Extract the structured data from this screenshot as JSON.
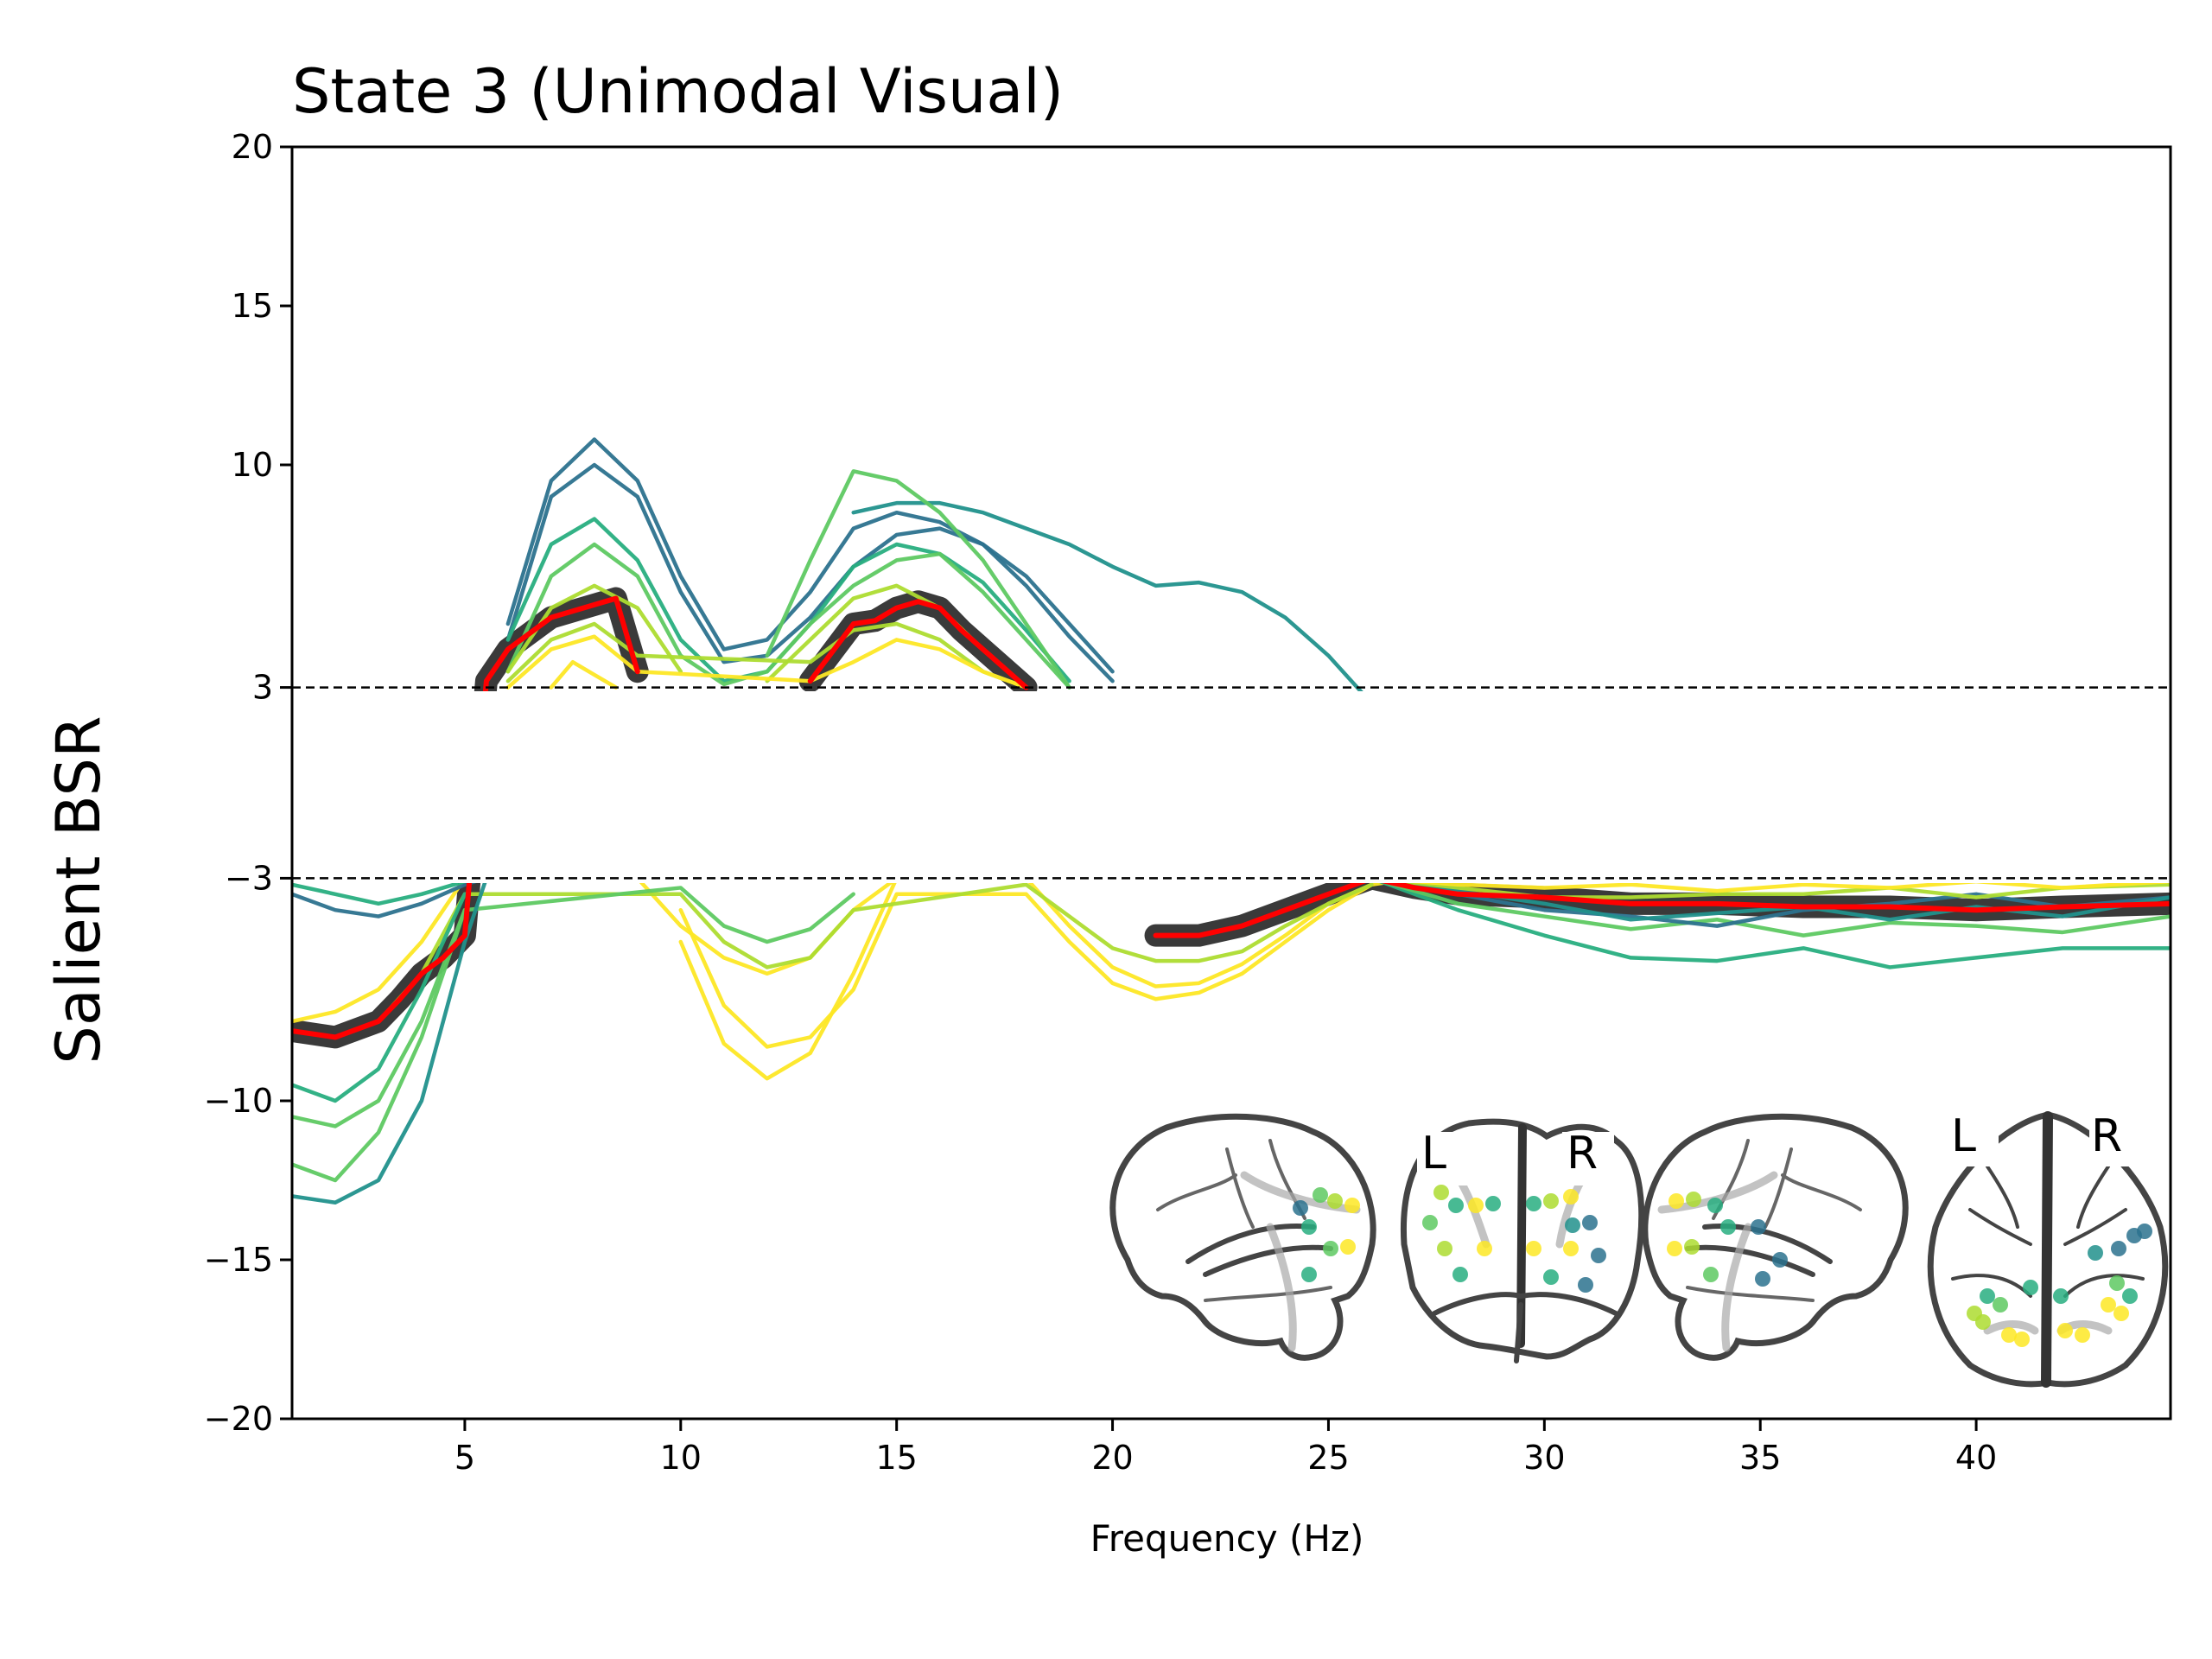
{
  "chart_data": {
    "type": "line",
    "title": "State 3 (Unimodal Visual)",
    "xlabel": "Frequency (Hz)",
    "ylabel": "Salient BSR",
    "xlim": [
      1,
      44.5
    ],
    "ylim": [
      -20,
      20
    ],
    "xticks": [
      5,
      10,
      15,
      20,
      25,
      30,
      35,
      40
    ],
    "yticks": [
      20,
      15,
      10,
      3,
      -3,
      -10,
      -15,
      -20
    ],
    "ytick_labels": [
      "20",
      "15",
      "10",
      "3",
      "−3",
      "−10",
      "−15",
      "−20"
    ],
    "threshold_lines": [
      3,
      -3
    ],
    "grid": false,
    "colors": {
      "mean": "#ff0000",
      "band": "#3a3a3a",
      "threshold": "#000000",
      "channels": [
        "#2c728e",
        "#21918c",
        "#28ae80",
        "#5ec962",
        "#addc30",
        "#fde725"
      ]
    },
    "series": [
      {
        "role": "channel",
        "color": "#2c728e",
        "x": [
          4,
          5,
          6,
          7,
          8,
          9,
          10,
          11,
          12,
          13,
          14,
          15,
          16,
          17,
          18,
          19,
          20,
          21,
          22,
          23,
          24,
          25,
          26
        ],
        "y": [
          null,
          null,
          4.5,
          9,
          10,
          9,
          6,
          3.8,
          4,
          5.2,
          6.8,
          7.8,
          8,
          7.5,
          6.5,
          5,
          3.5,
          null,
          null,
          null,
          null,
          null,
          null
        ]
      },
      {
        "role": "channel",
        "color": "#2c728e",
        "x": [
          5,
          6,
          7,
          8,
          9,
          10,
          11,
          12,
          13,
          14,
          15,
          16,
          17,
          18,
          19,
          20,
          21
        ],
        "y": [
          null,
          5,
          9.5,
          10.8,
          9.5,
          6.5,
          4.2,
          4.5,
          6,
          8,
          8.5,
          8.2,
          7.5,
          6.2,
          4.6,
          3.2,
          null
        ]
      },
      {
        "role": "channel",
        "color": "#21918c",
        "x": [
          14,
          15,
          16,
          17,
          18,
          19,
          20,
          21,
          22,
          23,
          24,
          25,
          26
        ],
        "y": [
          8.5,
          8.8,
          8.8,
          8.5,
          8,
          7.5,
          6.8,
          6.2,
          6.3,
          6,
          5.2,
          4,
          2.5
        ]
      },
      {
        "role": "channel",
        "color": "#28ae80",
        "x": [
          5,
          6,
          7,
          8,
          9,
          10,
          11,
          12,
          13,
          14,
          15,
          16,
          17,
          18,
          19
        ],
        "y": [
          null,
          4.5,
          7.5,
          8.3,
          7,
          4.5,
          3.2,
          3.5,
          5,
          6.8,
          7.5,
          7.2,
          6.3,
          4.8,
          3.2
        ]
      },
      {
        "role": "channel",
        "color": "#5ec962",
        "x": [
          12,
          13,
          14,
          15,
          16,
          17,
          18,
          19
        ],
        "y": [
          4,
          7,
          9.8,
          9.5,
          8.5,
          7,
          5,
          3
        ]
      },
      {
        "role": "channel",
        "color": "#5ec962",
        "x": [
          5,
          6,
          7,
          8,
          9,
          10,
          11,
          12,
          13,
          14,
          15,
          16,
          17,
          18,
          19
        ],
        "y": [
          null,
          3.5,
          6.5,
          7.5,
          6.5,
          4,
          3.1,
          3.5,
          5,
          6.2,
          7,
          7.2,
          6,
          4.5,
          3
        ]
      },
      {
        "role": "channel",
        "color": "#addc30",
        "x": [
          6,
          7,
          8,
          9,
          10,
          11,
          12,
          13,
          14,
          15,
          16,
          17,
          18
        ],
        "y": [
          3.5,
          5.5,
          6.2,
          5.5,
          3.5,
          null,
          3.2,
          4.5,
          5.8,
          6.2,
          5.5,
          4.2,
          3
        ]
      },
      {
        "role": "channel",
        "color": "#addc30",
        "x": [
          6,
          7,
          8,
          9,
          13,
          14,
          15,
          16,
          17,
          18
        ],
        "y": [
          3.2,
          4.5,
          5,
          4,
          3.8,
          4.8,
          5,
          4.5,
          3.5,
          3
        ]
      },
      {
        "role": "channel",
        "color": "#fde725",
        "x": [
          6,
          7,
          8,
          9,
          13,
          14,
          15,
          16,
          17,
          18
        ],
        "y": [
          3,
          4.2,
          4.6,
          3.5,
          3.2,
          3.8,
          4.5,
          4.2,
          3.5,
          3
        ]
      },
      {
        "role": "channel",
        "color": "#fde725",
        "x": [
          7,
          7.5,
          8,
          8.5
        ],
        "y": [
          3,
          3.8,
          3.4,
          3
        ]
      },
      {
        "role": "channel",
        "color": "#fde725",
        "x": [
          1,
          2,
          3,
          4,
          5,
          6,
          9,
          10,
          11,
          12,
          13,
          14,
          15,
          16,
          17,
          18,
          19,
          20,
          21,
          22,
          23,
          24,
          25,
          26,
          27
        ],
        "y": [
          -7.5,
          -7.2,
          -6.5,
          -5,
          -3,
          null,
          -3,
          -4.5,
          -5.5,
          -6,
          -5.5,
          -4,
          -3,
          null,
          null,
          -3,
          -4.5,
          -5.8,
          -6.4,
          -6.3,
          -5.7,
          -4.8,
          -3.8,
          -3.2,
          -3
        ]
      },
      {
        "role": "channel",
        "color": "#fde725",
        "x": [
          10,
          11,
          12,
          13,
          14,
          15,
          18,
          19,
          20,
          21,
          22,
          23,
          24,
          25,
          26
        ],
        "y": [
          -4,
          -7,
          -8.3,
          -8,
          -6.5,
          -3.5,
          -3.5,
          -5,
          -6.3,
          -6.8,
          -6.6,
          -6,
          -5,
          -4,
          -3.2
        ]
      },
      {
        "role": "channel",
        "color": "#fde725",
        "x": [
          10,
          11,
          12,
          13,
          14,
          15
        ],
        "y": [
          -5,
          -8.2,
          -9.3,
          -8.5,
          -6,
          -3
        ]
      },
      {
        "role": "channel",
        "color": "#addc30",
        "x": [
          1,
          2,
          3,
          4,
          5,
          10,
          11,
          12,
          13,
          14,
          18,
          19,
          20,
          21,
          22,
          23,
          24,
          25,
          26
        ],
        "y": [
          -7.8,
          -8,
          -7.5,
          -6,
          -3.5,
          -3.5,
          -5,
          -5.8,
          -5.5,
          -4,
          -3.2,
          -4.2,
          -5.2,
          -5.6,
          -5.6,
          -5.3,
          -4.5,
          -3.8,
          -3.2
        ]
      },
      {
        "role": "channel",
        "color": "#5ec962",
        "x": [
          1,
          2,
          3,
          4,
          5,
          10,
          11,
          12,
          13,
          14
        ],
        "y": [
          -10.5,
          -10.8,
          -10,
          -7.5,
          -4,
          -3.3,
          -4.5,
          -5,
          -4.6,
          -3.5
        ]
      },
      {
        "role": "channel",
        "color": "#5ec962",
        "x": [
          1,
          2,
          3,
          4,
          5
        ],
        "y": [
          -12,
          -12.5,
          -11,
          -8,
          -4
        ]
      },
      {
        "role": "channel",
        "color": "#28ae80",
        "x": [
          1,
          2,
          3,
          4,
          5
        ],
        "y": [
          -9.5,
          -10,
          -9,
          -6.5,
          -3.5
        ]
      },
      {
        "role": "channel",
        "color": "#21918c",
        "x": [
          1,
          2,
          3,
          4,
          5,
          5.5
        ],
        "y": [
          -13,
          -13.2,
          -12.5,
          -10,
          -5,
          -3
        ]
      },
      {
        "role": "channel",
        "color": "#2c728e",
        "x": [
          1,
          2,
          3,
          4,
          5,
          5.5
        ],
        "y": [
          -3.5,
          -4,
          -4.2,
          -3.8,
          -3.2,
          -3
        ]
      },
      {
        "role": "channel",
        "color": "#28ae80",
        "x": [
          1,
          2,
          3,
          4,
          5
        ],
        "y": [
          -3.2,
          -3.5,
          -3.8,
          -3.5,
          -3.1
        ]
      },
      {
        "role": "channel",
        "color": "#28ae80",
        "x": [
          26,
          28,
          30,
          32,
          34,
          36,
          38,
          40,
          42,
          44.5
        ],
        "y": [
          -3,
          -4,
          -4.8,
          -5.5,
          -5.6,
          -5.2,
          -5.8,
          -5.5,
          -5.2,
          -5.2
        ]
      },
      {
        "role": "channel",
        "color": "#5ec962",
        "x": [
          26,
          28,
          30,
          32,
          34,
          36,
          38,
          40,
          42,
          44.5
        ],
        "y": [
          -3,
          -3.8,
          -4.2,
          -4.6,
          -4.3,
          -4.8,
          -4.4,
          -4.5,
          -4.7,
          -4.2
        ]
      },
      {
        "role": "channel",
        "color": "#2c728e",
        "x": [
          26,
          28,
          30,
          32,
          34,
          36,
          38,
          40,
          42,
          44.5
        ],
        "y": [
          -3,
          -3.5,
          -4,
          -4.2,
          -4.5,
          -4,
          -3.8,
          -3.5,
          -3.9,
          -3.6
        ]
      },
      {
        "role": "channel",
        "color": "#21918c",
        "x": [
          26,
          28,
          30,
          32,
          34,
          36,
          38,
          40,
          42,
          44.5
        ],
        "y": [
          -3,
          -3.4,
          -3.8,
          -4.3,
          -4.1,
          -3.9,
          -4.3,
          -3.9,
          -4.2,
          -3.6
        ]
      },
      {
        "role": "channel",
        "color": "#addc30",
        "x": [
          26,
          28,
          30,
          32,
          34,
          36,
          38,
          40,
          42,
          44.5
        ],
        "y": [
          -3,
          -3.3,
          -3.6,
          -3.6,
          -3.5,
          -3.5,
          -3.3,
          -3.6,
          -3.3,
          -3.2
        ]
      },
      {
        "role": "channel",
        "color": "#fde725",
        "x": [
          26,
          28,
          30,
          32,
          34,
          36,
          38,
          40,
          42,
          44.5
        ],
        "y": [
          -3,
          -3.2,
          -3.3,
          -3.2,
          -3.4,
          -3.2,
          -3.3,
          -3.1,
          -3.3,
          -3.1
        ]
      },
      {
        "role": "mean",
        "color": "#ff0000",
        "x": [
          1,
          2,
          3,
          3.5,
          4,
          4.5,
          5,
          5.5,
          6,
          7,
          8,
          8.5,
          9,
          9.5,
          10,
          11,
          11.5,
          12,
          13,
          14,
          14.5,
          15,
          15.5,
          16,
          16.5,
          17,
          18,
          18.5,
          19,
          20,
          21,
          22,
          23,
          24,
          25,
          26,
          27,
          28,
          30,
          32,
          34,
          36,
          38,
          40,
          42,
          44.5
        ],
        "y": [
          -7.8,
          -8,
          -7.5,
          -6.8,
          -6,
          -5.5,
          -4.8,
          3.2,
          4.2,
          5.2,
          5.6,
          5.8,
          3.5,
          null,
          null,
          null,
          -3.2,
          null,
          3.2,
          5,
          5.1,
          5.5,
          5.7,
          5.5,
          4.8,
          4.2,
          3,
          null,
          null,
          null,
          -4.8,
          -4.8,
          -4.5,
          -4,
          -3.5,
          -3,
          -3.3,
          -3.5,
          -3.6,
          -3.8,
          -3.8,
          -3.9,
          -3.9,
          -4,
          -3.9,
          -3.8
        ]
      }
    ]
  },
  "inset": {
    "views": [
      "sagittal-left",
      "coronal",
      "sagittal-right",
      "axial"
    ],
    "coronal_labels": {
      "left": "L",
      "right": "R"
    },
    "axial_labels": {
      "left": "L",
      "right": "R"
    }
  }
}
